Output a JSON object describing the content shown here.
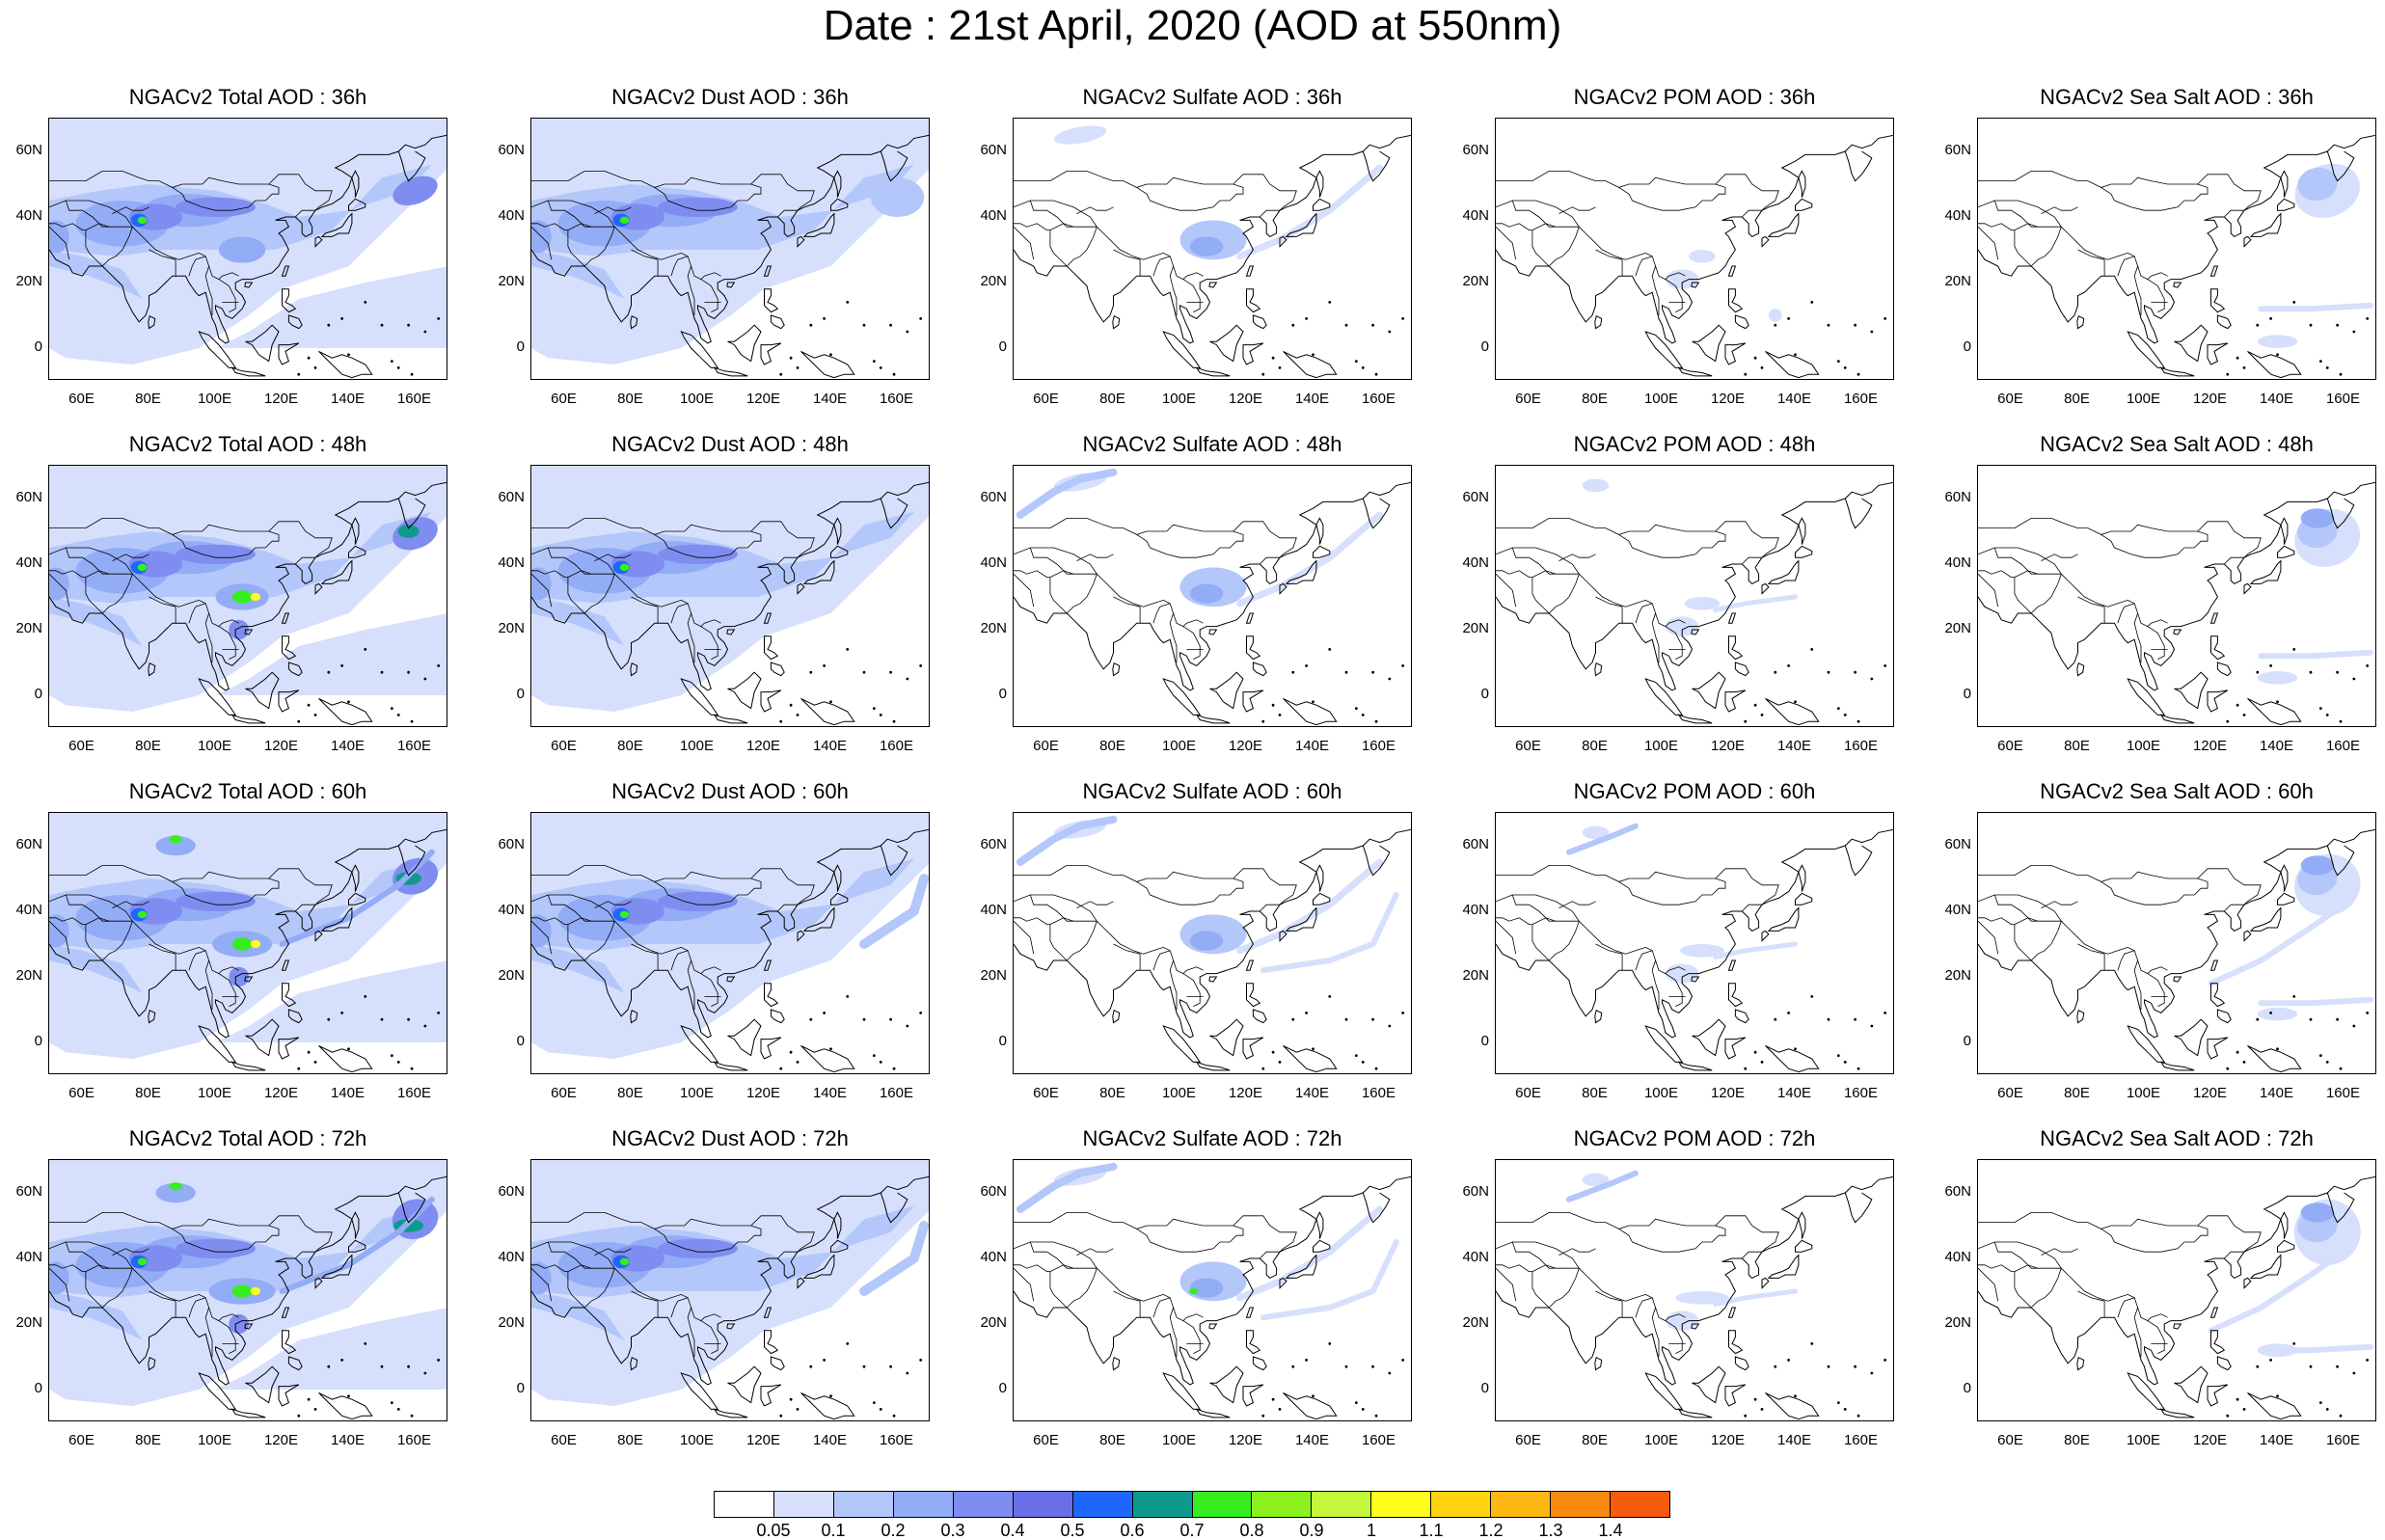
{
  "title": "Date : 21st April, 2020 (AOD at 550nm)",
  "panels": [
    {
      "title": "NGACv2 Total AOD : 36h",
      "variant": "total",
      "hour": 36
    },
    {
      "title": "NGACv2 Dust AOD : 36h",
      "variant": "dust",
      "hour": 36
    },
    {
      "title": "NGACv2 Sulfate AOD : 36h",
      "variant": "sulfate",
      "hour": 36
    },
    {
      "title": "NGACv2 POM AOD : 36h",
      "variant": "pom",
      "hour": 36
    },
    {
      "title": "NGACv2 Sea Salt AOD : 36h",
      "variant": "seasalt",
      "hour": 36
    },
    {
      "title": "NGACv2 Total AOD : 48h",
      "variant": "total",
      "hour": 48
    },
    {
      "title": "NGACv2 Dust AOD : 48h",
      "variant": "dust",
      "hour": 48
    },
    {
      "title": "NGACv2 Sulfate AOD : 48h",
      "variant": "sulfate",
      "hour": 48
    },
    {
      "title": "NGACv2 POM AOD : 48h",
      "variant": "pom",
      "hour": 48
    },
    {
      "title": "NGACv2 Sea Salt AOD : 48h",
      "variant": "seasalt",
      "hour": 48
    },
    {
      "title": "NGACv2 Total AOD : 60h",
      "variant": "total",
      "hour": 60
    },
    {
      "title": "NGACv2 Dust AOD : 60h",
      "variant": "dust",
      "hour": 60
    },
    {
      "title": "NGACv2 Sulfate AOD : 60h",
      "variant": "sulfate",
      "hour": 60
    },
    {
      "title": "NGACv2 POM AOD : 60h",
      "variant": "pom",
      "hour": 60
    },
    {
      "title": "NGACv2 Sea Salt AOD : 60h",
      "variant": "seasalt",
      "hour": 60
    },
    {
      "title": "NGACv2 Total AOD : 72h",
      "variant": "total",
      "hour": 72
    },
    {
      "title": "NGACv2 Dust AOD : 72h",
      "variant": "dust",
      "hour": 72
    },
    {
      "title": "NGACv2 Sulfate AOD : 72h",
      "variant": "sulfate",
      "hour": 72
    },
    {
      "title": "NGACv2 POM AOD : 72h",
      "variant": "pom",
      "hour": 72
    },
    {
      "title": "NGACv2 Sea Salt  AOD : 72h",
      "variant": "seasalt",
      "hour": 72
    }
  ],
  "axes": {
    "lon_range": [
      50,
      170
    ],
    "lat_range": [
      -10,
      70
    ],
    "lat_ticks": [
      "60N",
      "40N",
      "20N",
      "0"
    ],
    "lon_ticks": [
      "60E",
      "80E",
      "100E",
      "120E",
      "140E",
      "160E"
    ]
  },
  "colorbar": {
    "colors": [
      "#ffffff",
      "#d6e0fc",
      "#b4c7fb",
      "#93acf6",
      "#7f8df0",
      "#6a6fe8",
      "#1f66ff",
      "#0d9a8c",
      "#38ec22",
      "#8cf11c",
      "#c4f73b",
      "#fffd1c",
      "#fed410",
      "#fdb814",
      "#f98a10",
      "#f75b0d",
      "#f42c13"
    ],
    "labels": [
      "0.05",
      "0.1",
      "0.2",
      "0.3",
      "0.4",
      "0.5",
      "0.6",
      "0.7",
      "0.8",
      "0.9",
      "1",
      "1.1",
      "1.2",
      "1.3",
      "1.4"
    ]
  }
}
